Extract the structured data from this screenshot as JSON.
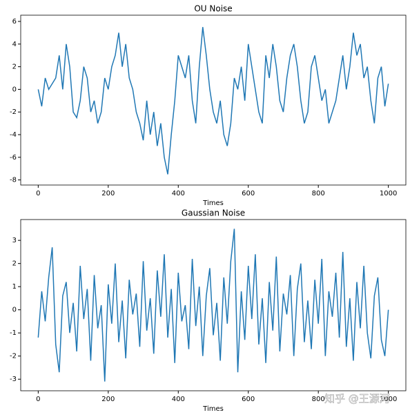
{
  "chart_data": [
    {
      "type": "line",
      "title": "OU Noise",
      "xlabel": "Times",
      "x": [
        0,
        10,
        20,
        30,
        40,
        50,
        60,
        70,
        80,
        90,
        100,
        110,
        120,
        130,
        140,
        150,
        160,
        170,
        180,
        190,
        200,
        210,
        220,
        230,
        240,
        250,
        260,
        270,
        280,
        290,
        300,
        310,
        320,
        330,
        340,
        350,
        360,
        370,
        380,
        390,
        400,
        410,
        420,
        430,
        440,
        450,
        460,
        470,
        480,
        490,
        500,
        510,
        520,
        530,
        540,
        550,
        560,
        570,
        580,
        590,
        600,
        610,
        620,
        630,
        640,
        650,
        660,
        670,
        680,
        690,
        700,
        710,
        720,
        730,
        740,
        750,
        760,
        770,
        780,
        790,
        800,
        810,
        820,
        830,
        840,
        850,
        860,
        870,
        880,
        890,
        900,
        910,
        920,
        930,
        940,
        950,
        960,
        970,
        980,
        990,
        1000
      ],
      "series": [
        {
          "name": "OU",
          "color": "#1f77b4",
          "values": [
            0,
            -1.5,
            1,
            0,
            0.5,
            1,
            3,
            0,
            4,
            2,
            -2,
            -2.5,
            -1,
            2,
            1,
            -2,
            -1,
            -3,
            -2,
            1,
            0,
            2,
            3,
            5,
            2,
            4,
            1,
            0,
            -2,
            -3,
            -4.5,
            -1,
            -4,
            -2,
            -5,
            -3,
            -6,
            -7.5,
            -4,
            -1,
            3,
            2,
            1,
            3,
            -1,
            -3,
            2,
            5.5,
            3,
            0,
            -2,
            -3,
            -1,
            -4,
            -5,
            -3,
            1,
            0,
            2,
            -1,
            4,
            2,
            0,
            -2,
            -3,
            3,
            1,
            4,
            2,
            -1,
            -2,
            1,
            3,
            4,
            2,
            -1,
            -3,
            -2,
            2,
            3,
            1,
            -1,
            0,
            -3,
            -2,
            -1,
            1,
            3,
            0,
            2,
            5,
            3,
            4,
            1,
            2,
            -1,
            -3,
            1,
            2,
            -1.5,
            0.5
          ]
        }
      ],
      "xlim": [
        -50,
        1050
      ],
      "ylim": [
        -8.45,
        6.55
      ],
      "xticks": [
        0,
        200,
        400,
        600,
        800,
        1000
      ],
      "yticks": [
        -8,
        -6,
        -4,
        -2,
        0,
        2,
        4,
        6
      ]
    },
    {
      "type": "line",
      "title": "Gaussian Noise",
      "xlabel": "Times",
      "x": [
        0,
        10,
        20,
        30,
        40,
        50,
        60,
        70,
        80,
        90,
        100,
        110,
        120,
        130,
        140,
        150,
        160,
        170,
        180,
        190,
        200,
        210,
        220,
        230,
        240,
        250,
        260,
        270,
        280,
        290,
        300,
        310,
        320,
        330,
        340,
        350,
        360,
        370,
        380,
        390,
        400,
        410,
        420,
        430,
        440,
        450,
        460,
        470,
        480,
        490,
        500,
        510,
        520,
        530,
        540,
        550,
        560,
        570,
        580,
        590,
        600,
        610,
        620,
        630,
        640,
        650,
        660,
        670,
        680,
        690,
        700,
        710,
        720,
        730,
        740,
        750,
        760,
        770,
        780,
        790,
        800,
        810,
        820,
        830,
        840,
        850,
        860,
        870,
        880,
        890,
        900,
        910,
        920,
        930,
        940,
        950,
        960,
        970,
        980,
        990,
        1000
      ],
      "series": [
        {
          "name": "Gaussian",
          "color": "#1f77b4",
          "values": [
            -1.2,
            0.8,
            -0.5,
            1.4,
            2.7,
            -1.5,
            -2.7,
            0.6,
            1.2,
            -1,
            0.3,
            -1.8,
            1.9,
            -0.4,
            0.9,
            -2.2,
            1.5,
            -0.8,
            0.2,
            -3.1,
            1.1,
            -0.6,
            2.0,
            -1.4,
            0.4,
            -2.1,
            1.3,
            -0.2,
            0.7,
            -1.6,
            2.1,
            -0.9,
            0.5,
            -1.9,
            1.7,
            -0.3,
            2.4,
            -1.2,
            0.9,
            -2.3,
            1.6,
            -0.5,
            0.2,
            -1.7,
            2.2,
            -0.7,
            1.0,
            -2.0,
            0.6,
            1.8,
            -1.1,
            0.3,
            -2.2,
            1.4,
            -0.6,
            2.1,
            3.5,
            -2.7,
            0.8,
            -1.3,
            1.9,
            -0.4,
            2.4,
            -1.5,
            0.5,
            -2.3,
            1.2,
            -0.9,
            2.3,
            -1.8,
            0.7,
            -0.2,
            1.5,
            -2.0,
            0.9,
            2.0,
            -1.4,
            0.4,
            -1.7,
            1.3,
            -0.6,
            2.2,
            -2.0,
            0.8,
            -0.3,
            1.6,
            -1.2,
            2.5,
            -1.6,
            0.5,
            -2.2,
            1.2,
            -0.8,
            1.9,
            -1.0,
            -2.1,
            0.6,
            1.4,
            -1.3,
            -2.0,
            0
          ]
        }
      ],
      "xlim": [
        -50,
        1050
      ],
      "ylim": [
        -3.5,
        3.9
      ],
      "xticks": [
        0,
        200,
        400,
        600,
        800,
        1000
      ],
      "yticks": [
        -3,
        -2,
        -1,
        0,
        1,
        2,
        3
      ]
    }
  ],
  "watermark": "知乎 @王源河"
}
